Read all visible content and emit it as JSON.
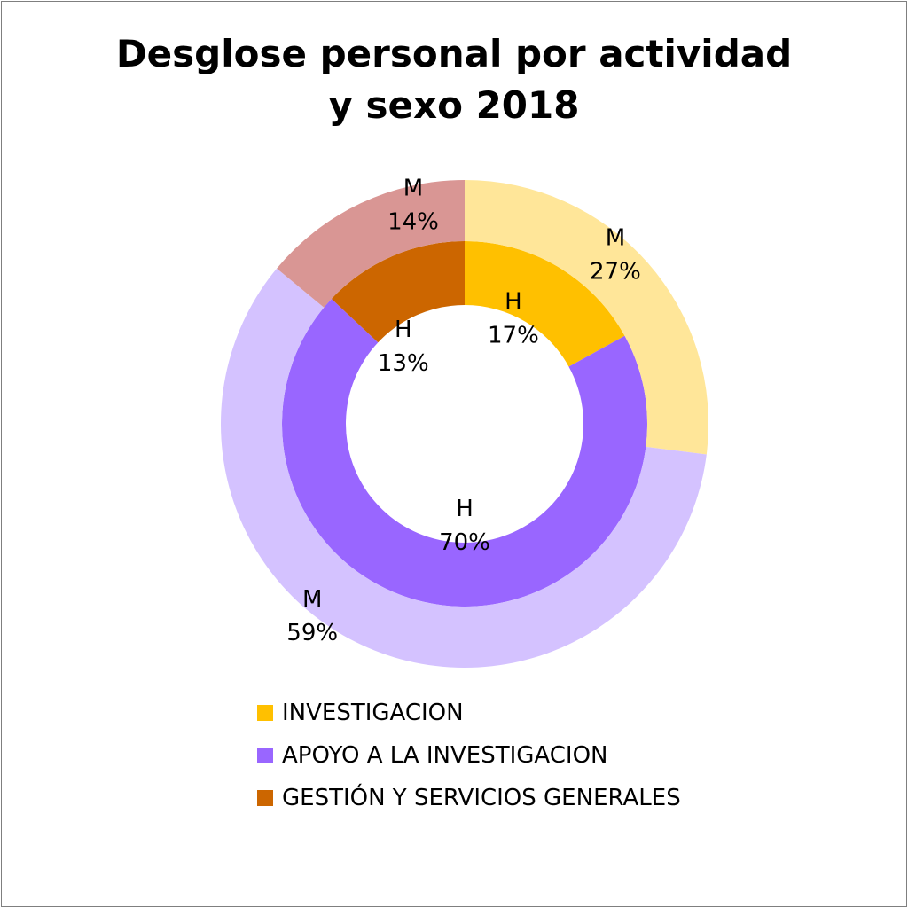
{
  "chart_data": {
    "type": "pie",
    "subtype": "double-donut",
    "title_lines": [
      "Desglose personal por actividad",
      "y sexo 2018"
    ],
    "categories": [
      "INVESTIGACION",
      "APOYO A LA INVESTIGACION",
      "GESTIÓN Y SERVICIOS GENERALES"
    ],
    "series": [
      {
        "ring": "inner",
        "label": "H",
        "values": [
          17,
          70,
          13
        ],
        "labels": [
          "17%",
          "70%",
          "13%"
        ],
        "colors": [
          "#ffc000",
          "#9966ff",
          "#cc6600"
        ]
      },
      {
        "ring": "outer",
        "label": "M",
        "values": [
          27,
          59,
          14
        ],
        "labels": [
          "27%",
          "59%",
          "14%"
        ],
        "colors": [
          "#ffe699",
          "#d4c2ff",
          "#d99694"
        ]
      }
    ],
    "legend": {
      "placement": "bottom",
      "colors": [
        "#ffc000",
        "#9966ff",
        "#cc6600"
      ]
    }
  }
}
